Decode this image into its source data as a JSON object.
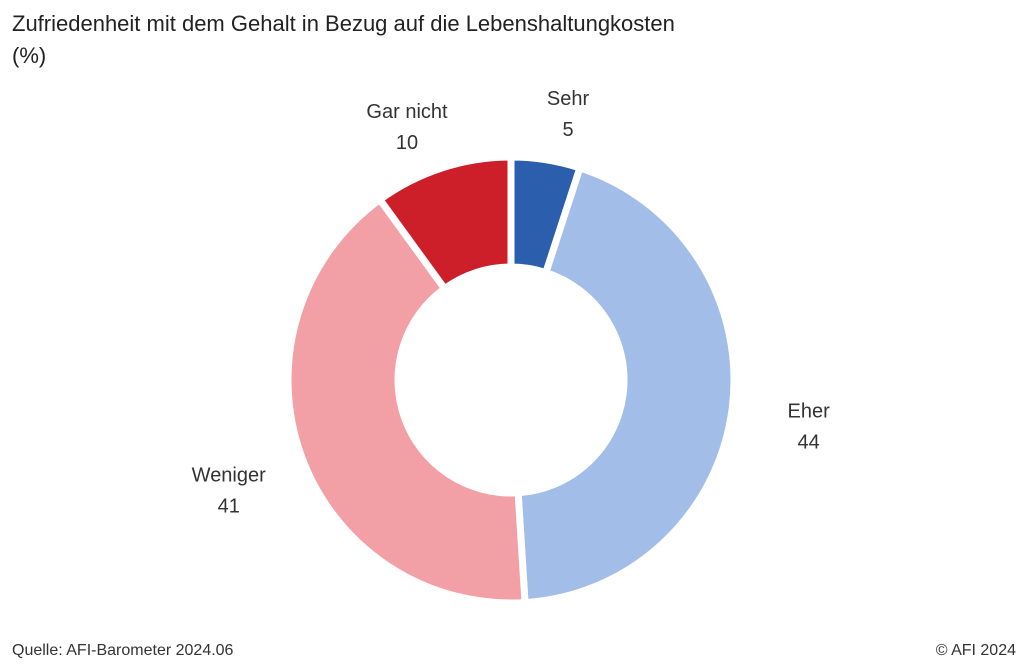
{
  "chart_data": {
    "type": "pie",
    "donut": true,
    "title": "Zufriedenheit mit dem Gehalt in Bezug auf die Lebenshaltungkosten",
    "subtitle": "(%)",
    "slices": [
      {
        "label": "Sehr",
        "value": 5,
        "color": "#2b5fad"
      },
      {
        "label": "Eher",
        "value": 44,
        "color": "#a2bee8"
      },
      {
        "label": "Weniger",
        "value": 41,
        "color": "#f2a0a5"
      },
      {
        "label": "Gar nicht",
        "value": 10,
        "color": "#cc1f2a"
      }
    ]
  },
  "footer": {
    "source": "Quelle: AFI-Barometer 2024.06",
    "copyright": "© AFI 2024"
  }
}
